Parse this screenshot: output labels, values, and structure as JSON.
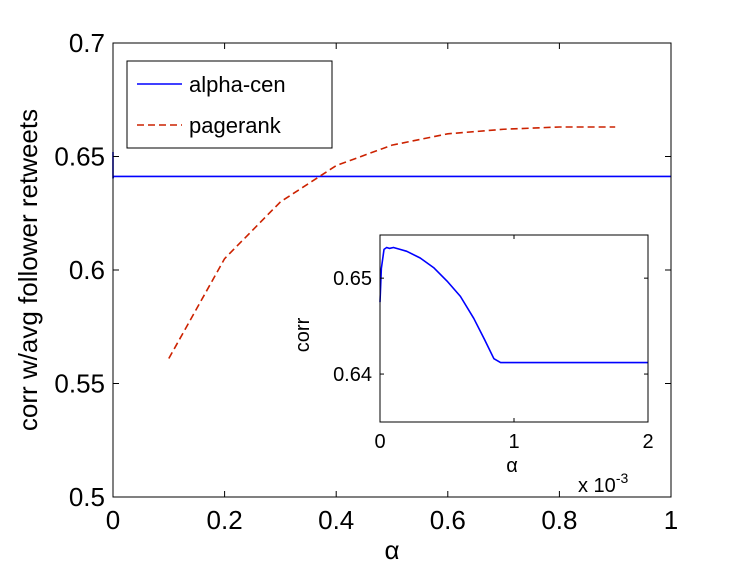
{
  "chart_data": [
    {
      "type": "line",
      "title": "",
      "xlabel": "α",
      "ylabel": "corr w/avg follower retweets",
      "xlim": [
        0,
        1
      ],
      "ylim": [
        0.5,
        0.7
      ],
      "xticks": [
        0,
        0.2,
        0.4,
        0.6,
        0.8,
        1
      ],
      "xtick_labels": [
        "0",
        "0.2",
        "0.4",
        "0.6",
        "0.8",
        "1"
      ],
      "yticks": [
        0.5,
        0.55,
        0.6,
        0.65,
        0.7
      ],
      "ytick_labels": [
        "0.5",
        "0.55",
        "0.6",
        "0.65",
        "0.7"
      ],
      "grid": false,
      "legend": "top-left",
      "series": [
        {
          "name": "alpha-cen",
          "color": "#0000ff",
          "style": "solid",
          "x": [
            0,
            0,
            0.001,
            1
          ],
          "y": [
            0.652,
            0.6405,
            0.6412,
            0.6412
          ]
        },
        {
          "name": "pagerank",
          "color": "#cc2200",
          "style": "dashed",
          "x": [
            0.1,
            0.2,
            0.3,
            0.4,
            0.5,
            0.6,
            0.7,
            0.8,
            0.9
          ],
          "y": [
            0.561,
            0.605,
            0.63,
            0.646,
            0.655,
            0.66,
            0.662,
            0.663,
            0.663
          ]
        }
      ]
    },
    {
      "type": "line",
      "title": "",
      "xlabel": "α",
      "ylabel": "corr",
      "xlim": [
        0,
        0.002
      ],
      "ylim": [
        0.635,
        0.6545
      ],
      "xticks": [
        0,
        0.001,
        0.002
      ],
      "xtick_labels": [
        "0",
        "1",
        "2"
      ],
      "x_multiplier_base": "x 10",
      "x_multiplier_exp": "-3",
      "yticks": [
        0.64,
        0.65
      ],
      "ytick_labels": [
        "0.64",
        "0.65"
      ],
      "grid": false,
      "series": [
        {
          "color": "#0000ff",
          "style": "solid",
          "x": [
            0,
            1e-05,
            3e-05,
            5e-05,
            7e-05,
            0.0001,
            0.00015,
            0.0002,
            0.0003,
            0.0004,
            0.0005,
            0.0006,
            0.0007,
            0.00078,
            0.00085,
            0.0009,
            0.00095,
            0.001,
            0.0015,
            0.002
          ],
          "y": [
            0.6475,
            0.651,
            0.653,
            0.6532,
            0.6531,
            0.6532,
            0.653,
            0.6528,
            0.6521,
            0.6511,
            0.6497,
            0.6481,
            0.6458,
            0.6436,
            0.6416,
            0.6412,
            0.6412,
            0.6412,
            0.6412,
            0.6412
          ]
        }
      ]
    }
  ]
}
